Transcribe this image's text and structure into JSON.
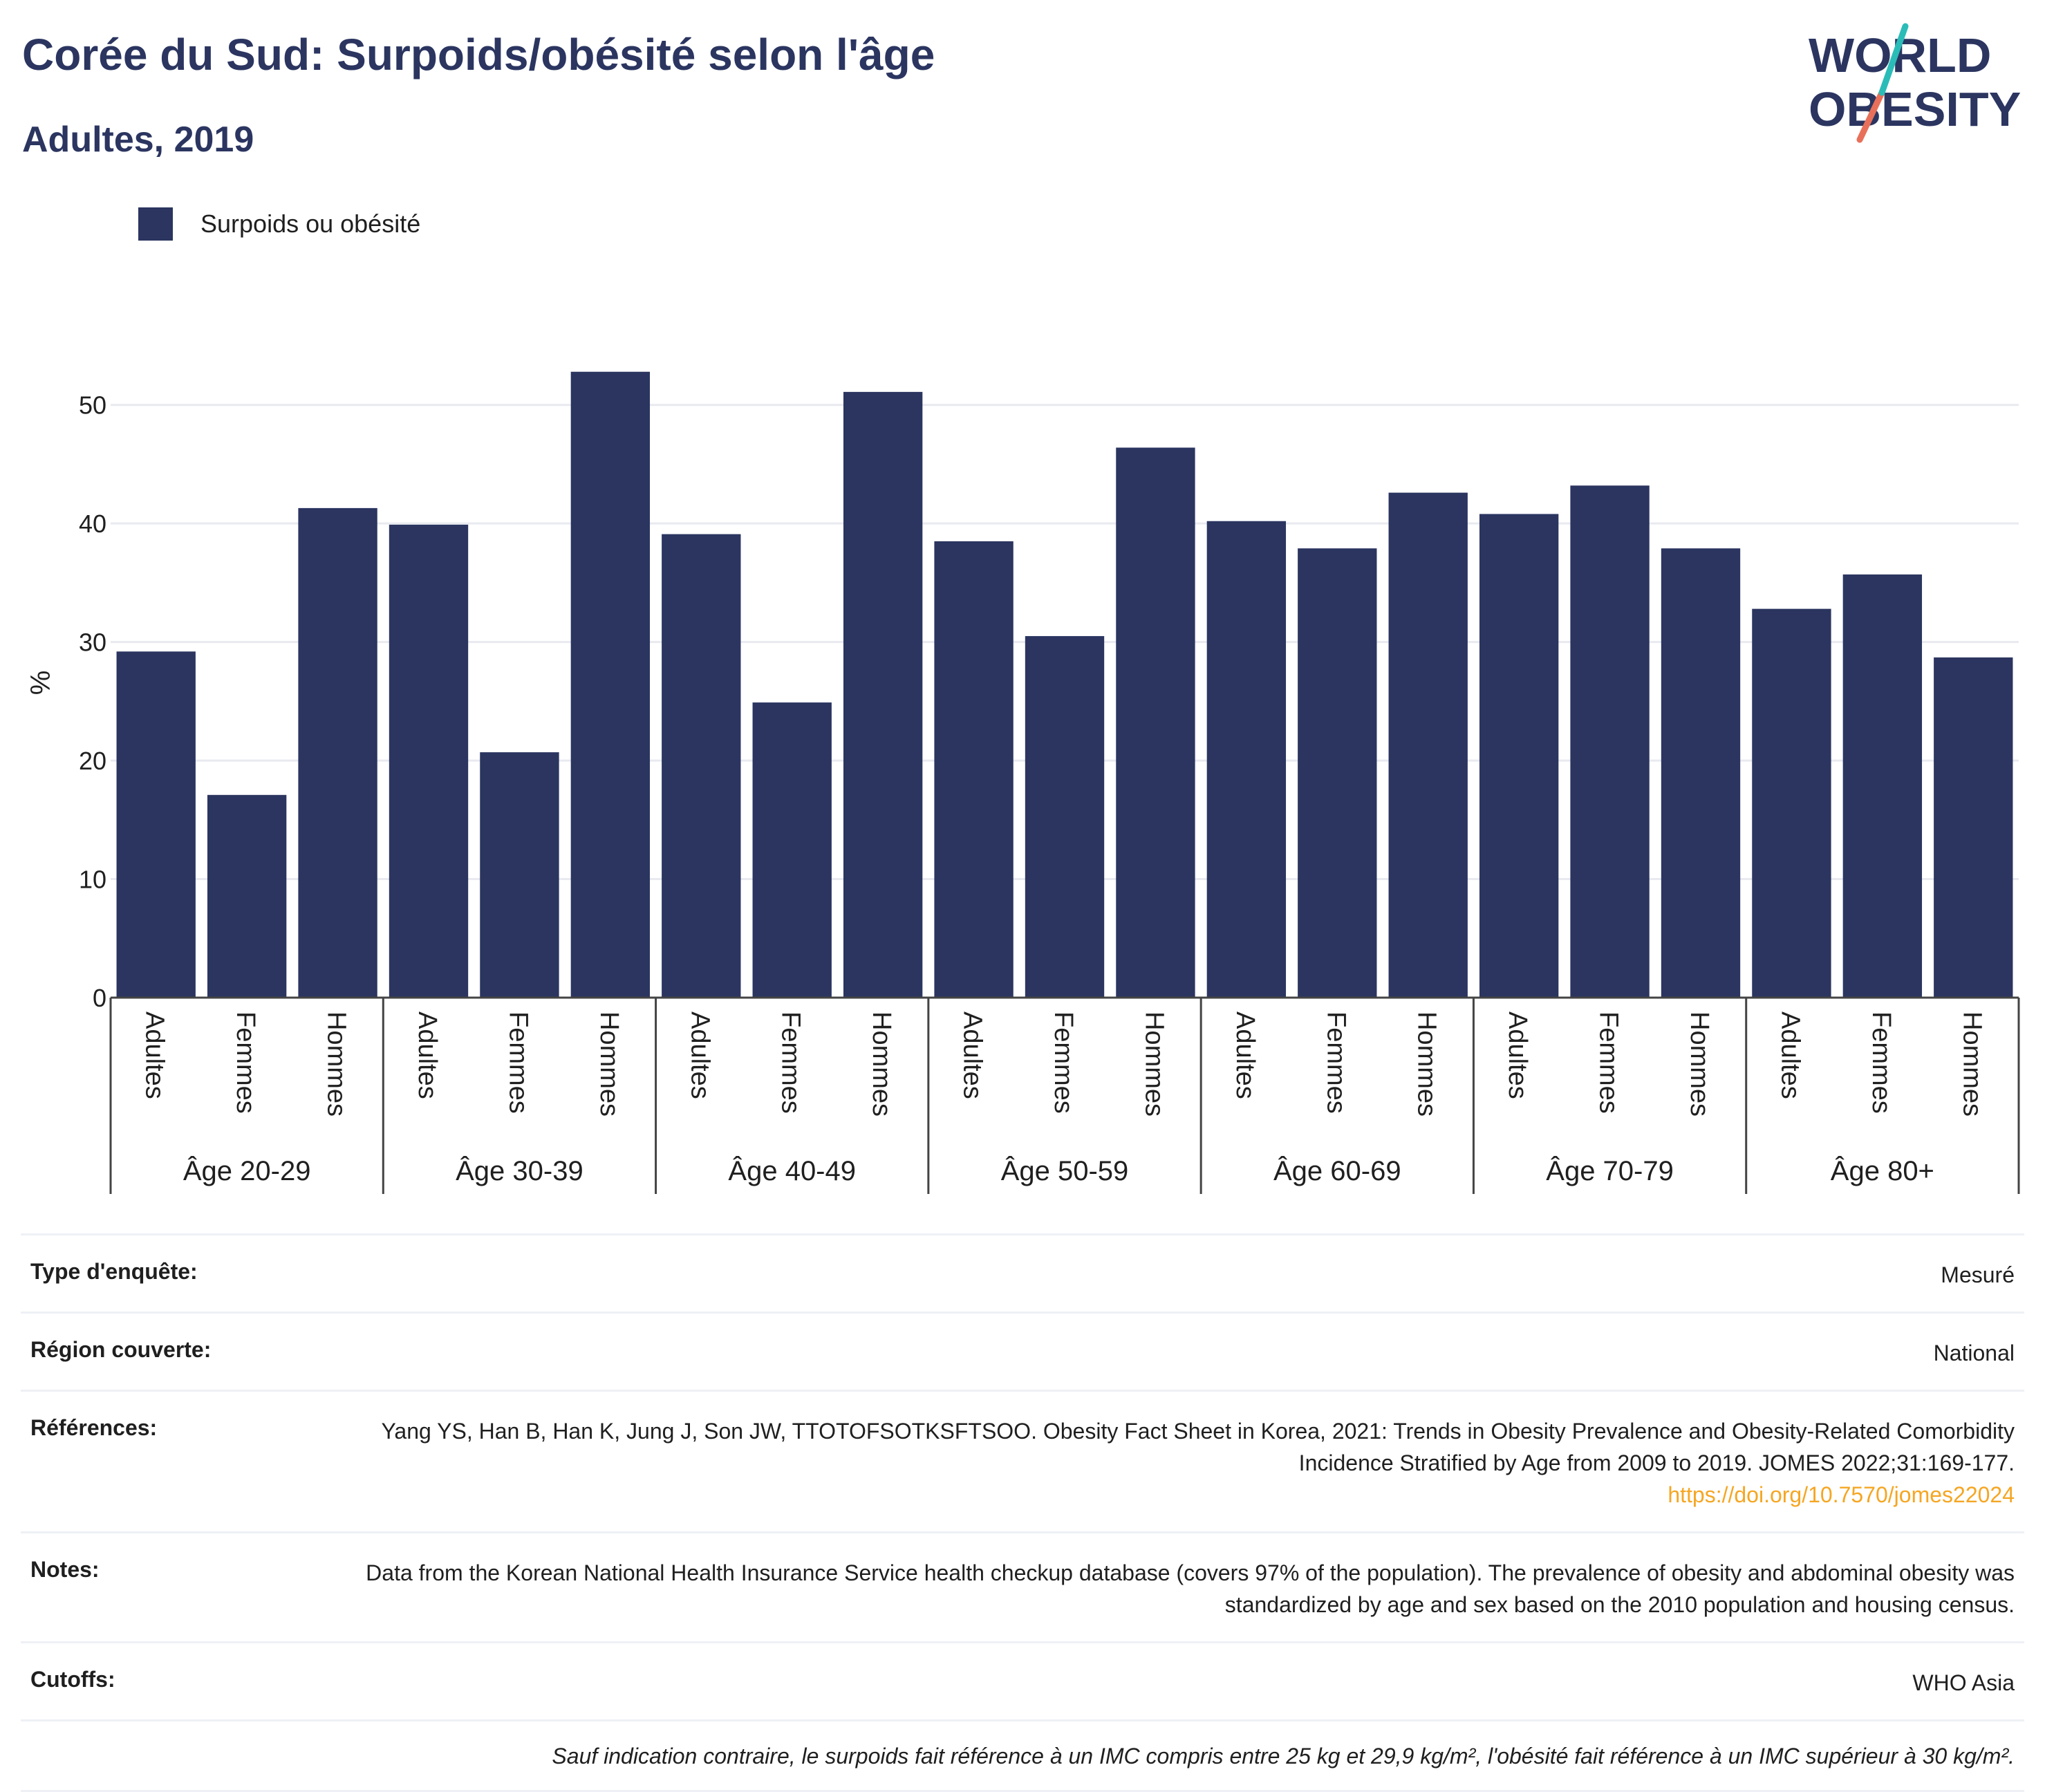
{
  "header": {
    "title": "Corée du Sud: Surpoids/obésité selon l'âge",
    "subtitle": "Adultes, 2019"
  },
  "logo": {
    "line1": "WORLD",
    "line2": "OBESITY",
    "colors": {
      "text": "#2b3560",
      "teal": "#2bbcb8",
      "coral": "#e8705a"
    }
  },
  "legend": {
    "label": "Surpoids ou obésité",
    "color": "#2b3560"
  },
  "chart_data": {
    "type": "bar",
    "ylabel": "%",
    "ylim": [
      0,
      55
    ],
    "yticks": [
      0,
      10,
      20,
      30,
      40,
      50
    ],
    "grid": true,
    "legend_position": "top-left",
    "bar_color": "#2b3560",
    "groups": [
      {
        "label": "Âge 20-29",
        "categories": [
          "Adultes",
          "Femmes",
          "Hommes"
        ],
        "values": [
          29.2,
          17.1,
          41.3
        ]
      },
      {
        "label": "Âge 30-39",
        "categories": [
          "Adultes",
          "Femmes",
          "Hommes"
        ],
        "values": [
          39.9,
          20.7,
          52.8
        ]
      },
      {
        "label": "Âge 40-49",
        "categories": [
          "Adultes",
          "Femmes",
          "Hommes"
        ],
        "values": [
          39.1,
          24.9,
          51.1
        ]
      },
      {
        "label": "Âge 50-59",
        "categories": [
          "Adultes",
          "Femmes",
          "Hommes"
        ],
        "values": [
          38.5,
          30.5,
          46.4
        ]
      },
      {
        "label": "Âge 60-69",
        "categories": [
          "Adultes",
          "Femmes",
          "Hommes"
        ],
        "values": [
          40.2,
          37.9,
          42.6
        ]
      },
      {
        "label": "Âge 70-79",
        "categories": [
          "Adultes",
          "Femmes",
          "Hommes"
        ],
        "values": [
          40.8,
          43.2,
          37.9
        ]
      },
      {
        "label": "Âge 80+",
        "categories": [
          "Adultes",
          "Femmes",
          "Hommes"
        ],
        "values": [
          32.8,
          35.7,
          28.7
        ]
      }
    ]
  },
  "info": {
    "rows": [
      {
        "label": "Type d'enquête:",
        "value": "Mesuré"
      },
      {
        "label": "Région couverte:",
        "value": "National"
      },
      {
        "label": "Références:",
        "value": "Yang YS, Han B, Han K, Jung J, Son JW, TTOTOFSOTKSFTSOO. Obesity Fact Sheet in Korea, 2021: Trends in Obesity Prevalence and Obesity-Related Comorbidity Incidence Stratified by Age from 2009 to 2019. JOMES 2022;31:169-177.",
        "link": "https://doi.org/10.7570/jomes22024"
      },
      {
        "label": "Notes:",
        "value": "Data from the Korean National Health Insurance Service health checkup database (covers 97% of the population). The prevalence of obesity and abdominal obesity was standardized by age and sex based on the 2010 population and housing census."
      },
      {
        "label": "Cutoffs:",
        "value": "WHO Asia"
      }
    ],
    "footnote": "Sauf indication contraire, le surpoids fait référence à un IMC compris entre 25 kg et 29,9 kg/m², l'obésité fait référence à un IMC supérieur à 30 kg/m²."
  }
}
